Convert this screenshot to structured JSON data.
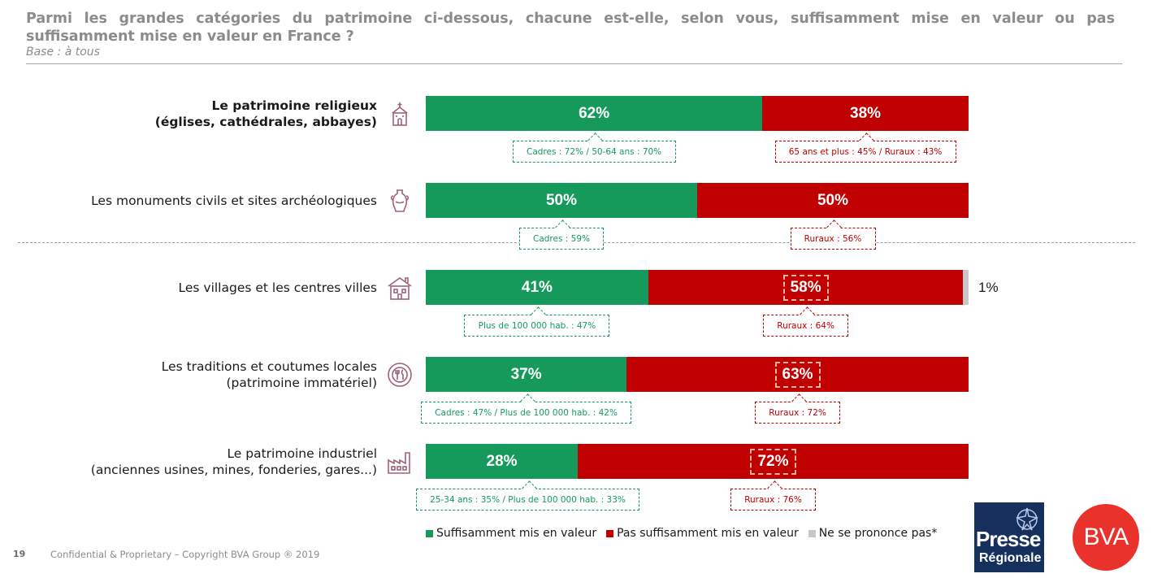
{
  "header": {
    "title": "Parmi les grandes catégories du patrimoine ci-dessous, chacune est-elle, selon vous, suffisamment mise en valeur ou pas suffisamment mise en valeur en France ?",
    "subtitle": "Base : à tous"
  },
  "colors": {
    "green": "#159a5c",
    "red": "#c00000",
    "grey": "#c8c8c8"
  },
  "chart_data": {
    "type": "bar",
    "orientation": "horizontal",
    "stacked": true,
    "xlim": [
      0,
      100
    ],
    "unit": "%",
    "categories": [
      "Le patrimoine religieux (églises, cathédrales, abbayes)",
      "Les monuments civils et sites archéologiques",
      "Les villages et les centres villes",
      "Les traditions et coutumes locales (patrimoine immatériel)",
      "Le patrimoine industriel (anciennes usines, mines, fonderies, gares...)"
    ],
    "series": [
      {
        "name": "Suffisamment mis en valeur",
        "color": "#159a5c",
        "values": [
          62,
          50,
          41,
          37,
          28
        ]
      },
      {
        "name": "Pas suffisamment mis en valeur",
        "color": "#c00000",
        "values": [
          38,
          50,
          58,
          63,
          72
        ]
      },
      {
        "name": "Ne se prononce pas*",
        "color": "#c8c8c8",
        "values": [
          0,
          0,
          1,
          0,
          0
        ]
      }
    ],
    "legend_position": "bottom",
    "rows": [
      {
        "label_lines": [
          "Le patrimoine religieux",
          "(églises, cathédrales, abbayes)"
        ],
        "bold": true,
        "icon": "church-icon",
        "green_label": "62%",
        "red_label": "38%",
        "grey_label": "",
        "red_highlight": false,
        "green_callout": "Cadres : 72% / 50-64 ans : 70%",
        "red_callout": "65 ans et plus : 45% / Ruraux : 43%"
      },
      {
        "label_lines": [
          "Les monuments civils et sites archéologiques"
        ],
        "bold": false,
        "icon": "amphora-icon",
        "green_label": "50%",
        "red_label": "50%",
        "grey_label": "",
        "red_highlight": false,
        "green_callout": "Cadres : 59%",
        "red_callout": "Ruraux : 56%"
      },
      {
        "label_lines": [
          "Les villages et les centres villes"
        ],
        "bold": false,
        "icon": "village-house-icon",
        "green_label": "41%",
        "red_label": "58%",
        "grey_label": "1%",
        "red_highlight": true,
        "green_callout": "Plus de 100 000 hab. : 47%",
        "red_callout": "Ruraux : 64%"
      },
      {
        "label_lines": [
          "Les traditions et coutumes locales",
          "(patrimoine immatériel)"
        ],
        "bold": false,
        "icon": "plate-cutlery-icon",
        "green_label": "37%",
        "red_label": "63%",
        "grey_label": "",
        "red_highlight": true,
        "green_callout": "Cadres : 47% / Plus de 100 000 hab. : 42%",
        "red_callout": "Ruraux : 72%"
      },
      {
        "label_lines": [
          "Le patrimoine industriel",
          "(anciennes usines, mines, fonderies, gares...)"
        ],
        "bold": false,
        "icon": "factory-icon",
        "green_label": "28%",
        "red_label": "72%",
        "grey_label": "",
        "red_highlight": true,
        "green_callout": "25-34 ans : 35% / Plus de 100 000 hab. : 33%",
        "red_callout": "Ruraux : 76%"
      }
    ]
  },
  "footer": {
    "page_number": "19",
    "copyright": "Confidential & Proprietary – Copyright BVA Group ®  2019"
  },
  "logos": {
    "presse_line1": "Presse",
    "presse_line2": "Régionale",
    "bva": "BVA"
  }
}
